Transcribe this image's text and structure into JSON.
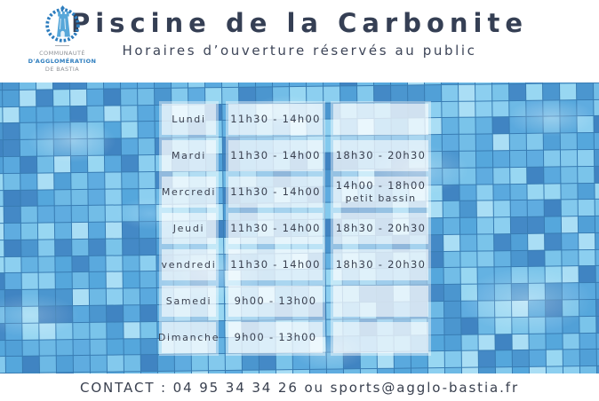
{
  "header": {
    "title": "Piscine de la Carbonite",
    "subtitle": "Horaires d’ouverture réservés au public",
    "logo": {
      "emblem": "bastia-tower-laurel-emblem",
      "line1": "COMMUNAUTÉ",
      "line2": "D'AGGLOMÉRATION",
      "line3": "DE BASTIA"
    }
  },
  "schedule": {
    "rows": [
      {
        "day": "Lundi",
        "morning": "11h30 - 14h00",
        "evening": ""
      },
      {
        "day": "Mardi",
        "morning": "11h30 - 14h00",
        "evening": "18h30 - 20h30"
      },
      {
        "day": "Mercredi",
        "morning": "11h30 - 14h00",
        "evening": "14h00 - 18h00",
        "evening_note": "petit bassin"
      },
      {
        "day": "Jeudi",
        "morning": "11h30 - 14h00",
        "evening": "18h30 - 20h30"
      },
      {
        "day": "vendredi",
        "morning": "11h30 - 14h00",
        "evening": "18h30 - 20h30"
      },
      {
        "day": "Samedi",
        "morning": "9h00 - 13h00",
        "evening": ""
      },
      {
        "day": "Dimanche",
        "morning": "9h00 - 13h00",
        "evening": ""
      }
    ]
  },
  "footer": {
    "contact": "CONTACT : 04 95 34 34 26 ou sports@agglo-bastia.fr"
  },
  "colors": {
    "title_navy": "#353f54",
    "logo_blue": "#2d7dbe",
    "pool_base": "#4d9fd6",
    "tile_grout": "#1f528a"
  }
}
